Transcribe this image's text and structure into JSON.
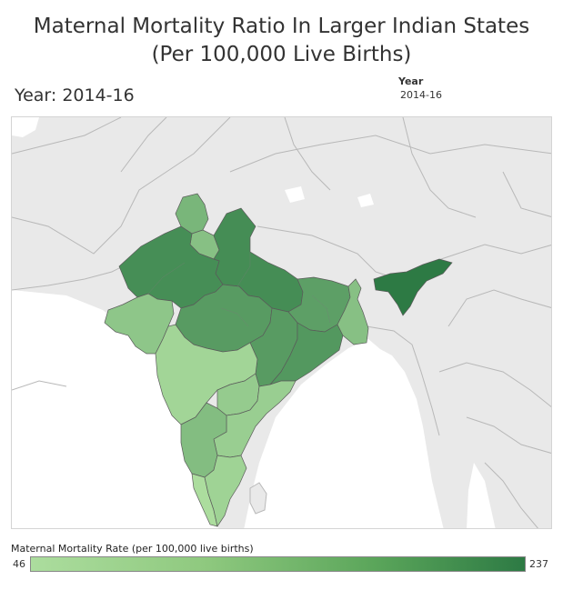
{
  "title": {
    "line1": "Maternal Mortality Ratio In Larger Indian States",
    "line2": "(Per 100,000 Live Births)"
  },
  "year_display": "Year: 2014-16",
  "year_filter": {
    "label": "Year",
    "value": "2014-16"
  },
  "legend": {
    "title": "Maternal Mortality Rate (per 100,000 live births)",
    "min": "46",
    "max": "237",
    "color_low": "#acdd9e",
    "color_high": "#2d7a44"
  },
  "colors": {
    "background_land": "#e9e9e9",
    "water": "#ffffff",
    "border": "#b8b8b8",
    "state_border": "#555555"
  },
  "state_values": {
    "assam": 237,
    "uttar_pradesh_uttarakhand": 201,
    "rajasthan": 199,
    "madhya_pradesh": 173,
    "chhattisgarh": 173,
    "odisha": 180,
    "bihar_jharkhand": 165,
    "punjab": 122,
    "haryana": 101,
    "karnataka": 108,
    "west_bengal": 101,
    "andhra_pradesh": 74,
    "telangana": 81,
    "gujarat": 91,
    "maharashtra": 61,
    "tamil_nadu": 66,
    "kerala": 46
  }
}
